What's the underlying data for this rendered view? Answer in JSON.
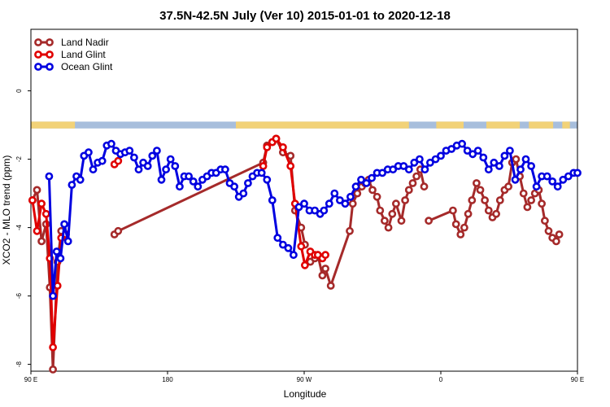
{
  "chart_data": {
    "type": "line",
    "title": "37.5N-42.5N July (Ver 10)   2015-01-01 to 2020-12-18",
    "xlabel": "Longitude",
    "ylabel": "XCO2 - MLO trend (ppm)",
    "xlim": [
      90,
      450
    ],
    "ylim": [
      -8.2,
      1.8
    ],
    "x_ticks": [
      {
        "value": 90,
        "label": "90 E"
      },
      {
        "value": 180,
        "label": "180"
      },
      {
        "value": 270,
        "label": "90 W"
      },
      {
        "value": 360,
        "label": "0"
      },
      {
        "value": 450,
        "label": "90 E"
      }
    ],
    "x_ticks_extra": [
      {
        "value": 540,
        "label": "180"
      }
    ],
    "y_ticks": [
      {
        "value": 0,
        "label": "0"
      },
      {
        "value": -2,
        "label": "-2"
      },
      {
        "value": -4,
        "label": "-4"
      },
      {
        "value": -6,
        "label": "-6"
      },
      {
        "value": -8,
        "label": "-8"
      }
    ],
    "grid": false,
    "legend_position": "top-left",
    "land_strip": {
      "y_top": -0.9,
      "y_bottom": -1.1,
      "ocean_color": "#a7bedc",
      "land_color": "#f2d278"
    },
    "series": [
      {
        "name": "Land Nadir",
        "color": "#a52a2a",
        "x": [
          91,
          94,
          97,
          100,
          102.5,
          104.5,
          107.5,
          110,
          113,
          145,
          147.5,
          243,
          245.5,
          249,
          251.5,
          256,
          261,
          264,
          268,
          270.5,
          274,
          277,
          279,
          282,
          284,
          287.5,
          300,
          302,
          305,
          308,
          310,
          312.5,
          315,
          318,
          320,
          323,
          325.5,
          328,
          330.5,
          334,
          336.5,
          339,
          341.5,
          344,
          346.5,
          349,
          352,
          368,
          370,
          373,
          375.5,
          378,
          380.5,
          383.5,
          386,
          389,
          391.5,
          394,
          396.5,
          399,
          402,
          404.5,
          407,
          409.5,
          412,
          414.5,
          417,
          419.5,
          422,
          424.5,
          426.5,
          428.5,
          431,
          433.5,
          436,
          438
        ],
        "y": [
          -3.2,
          -2.9,
          -4.4,
          -3.9,
          -5.75,
          -8.15,
          -5.0,
          -4.1,
          -4.2,
          -4.2,
          -4.1,
          -2.1,
          -1.6,
          -1.5,
          -1.4,
          -1.8,
          -1.9,
          -3.5,
          -4.0,
          -4.5,
          -5.0,
          -4.9,
          -4.8,
          -5.4,
          -5.2,
          -5.7,
          -4.1,
          -3.3,
          -3.0,
          -2.8,
          -2.7,
          -2.6,
          -2.9,
          -3.1,
          -3.5,
          -3.8,
          -4.0,
          -3.6,
          -3.3,
          -3.8,
          -3.2,
          -2.9,
          -2.7,
          -2.5,
          -2.3,
          -2.8,
          -3.8,
          -3.5,
          -3.9,
          -4.2,
          -4.0,
          -3.6,
          -3.2,
          -2.7,
          -2.9,
          -3.2,
          -3.5,
          -3.7,
          -3.6,
          -3.2,
          -2.9,
          -2.8,
          -2.1,
          -2.0,
          -2.5,
          -3.0,
          -3.4,
          -3.2,
          -3.0,
          -2.9,
          -3.3,
          -3.8,
          -4.1,
          -4.3,
          -4.4,
          -4.2
        ],
        "gaps": [
          9,
          20,
          46
        ]
      },
      {
        "name": "Land Glint",
        "color": "#e00000",
        "x": [
          91,
          94,
          97,
          100,
          102.5,
          104.5,
          107.5,
          110,
          113,
          145,
          147.5,
          243,
          245.5,
          249,
          251.5,
          256,
          261,
          264,
          268,
          270.5,
          274,
          277,
          279,
          282,
          284
        ],
        "y": [
          -3.2,
          -4.1,
          -3.3,
          -3.6,
          -4.9,
          -7.5,
          -5.7,
          -4.3,
          -4.2,
          -2.15,
          -2.05,
          -2.2,
          -1.65,
          -1.5,
          -1.4,
          -1.65,
          -2.2,
          -3.3,
          -4.55,
          -5.1,
          -4.7,
          -4.8,
          -4.8,
          -4.9,
          -4.8
        ],
        "gaps": [
          9,
          11
        ]
      },
      {
        "name": "Ocean Glint",
        "color": "#0000e0",
        "x": [
          102,
          104.5,
          107,
          109.5,
          112,
          114.5,
          117,
          120,
          122.5,
          125,
          128,
          131,
          134,
          137,
          140,
          143,
          146,
          149,
          152,
          155,
          158,
          161,
          164,
          167,
          170,
          173,
          176,
          179,
          182,
          185,
          188,
          191,
          194,
          197,
          200,
          203,
          206,
          209,
          212,
          215,
          218,
          221,
          224,
          227,
          230,
          233,
          236,
          239,
          242,
          245.5,
          249,
          252.5,
          256,
          259.5,
          263,
          266.5,
          270,
          273.5,
          277,
          280.5,
          283,
          286.5,
          290,
          293.5,
          297,
          300.5,
          304,
          307.5,
          311,
          314.5,
          318,
          321.5,
          325,
          328.5,
          332,
          335.5,
          339,
          342.5,
          346,
          349.5,
          353,
          356.5,
          360,
          363.5,
          367,
          370.5,
          374,
          377.5,
          381,
          384.5,
          388,
          391.5,
          395,
          398.5,
          402,
          405.5,
          409,
          412.5,
          416,
          419.5,
          423,
          426.5,
          430,
          433.5,
          437,
          440.5,
          444,
          447.5,
          450
        ],
        "y": [
          -2.5,
          -6.0,
          -4.7,
          -4.9,
          -3.9,
          -4.4,
          -2.75,
          -2.5,
          -2.6,
          -1.9,
          -1.8,
          -2.3,
          -2.1,
          -2.05,
          -1.6,
          -1.55,
          -1.75,
          -1.85,
          -1.8,
          -1.75,
          -1.95,
          -2.3,
          -2.1,
          -2.2,
          -1.9,
          -1.75,
          -2.6,
          -2.3,
          -2.0,
          -2.2,
          -2.8,
          -2.5,
          -2.5,
          -2.65,
          -2.8,
          -2.6,
          -2.5,
          -2.4,
          -2.4,
          -2.3,
          -2.3,
          -2.7,
          -2.8,
          -3.1,
          -3.0,
          -2.7,
          -2.5,
          -2.4,
          -2.4,
          -2.6,
          -3.2,
          -4.3,
          -4.5,
          -4.6,
          -4.8,
          -3.4,
          -3.3,
          -3.5,
          -3.5,
          -3.6,
          -3.5,
          -3.3,
          -3.0,
          -3.2,
          -3.3,
          -3.1,
          -2.8,
          -2.6,
          -2.7,
          -2.55,
          -2.4,
          -2.4,
          -2.3,
          -2.3,
          -2.2,
          -2.2,
          -2.3,
          -2.1,
          -2.0,
          -2.3,
          -2.1,
          -2.0,
          -1.9,
          -1.75,
          -1.7,
          -1.6,
          -1.55,
          -1.75,
          -1.85,
          -1.75,
          -1.95,
          -2.3,
          -2.1,
          -2.2,
          -1.9,
          -1.75,
          -2.6,
          -2.3,
          -2.0,
          -2.2,
          -2.8,
          -2.5,
          -2.5,
          -2.65,
          -2.8,
          -2.6,
          -2.5,
          -2.4,
          -2.4
        ],
        "hidden": false
      }
    ]
  }
}
